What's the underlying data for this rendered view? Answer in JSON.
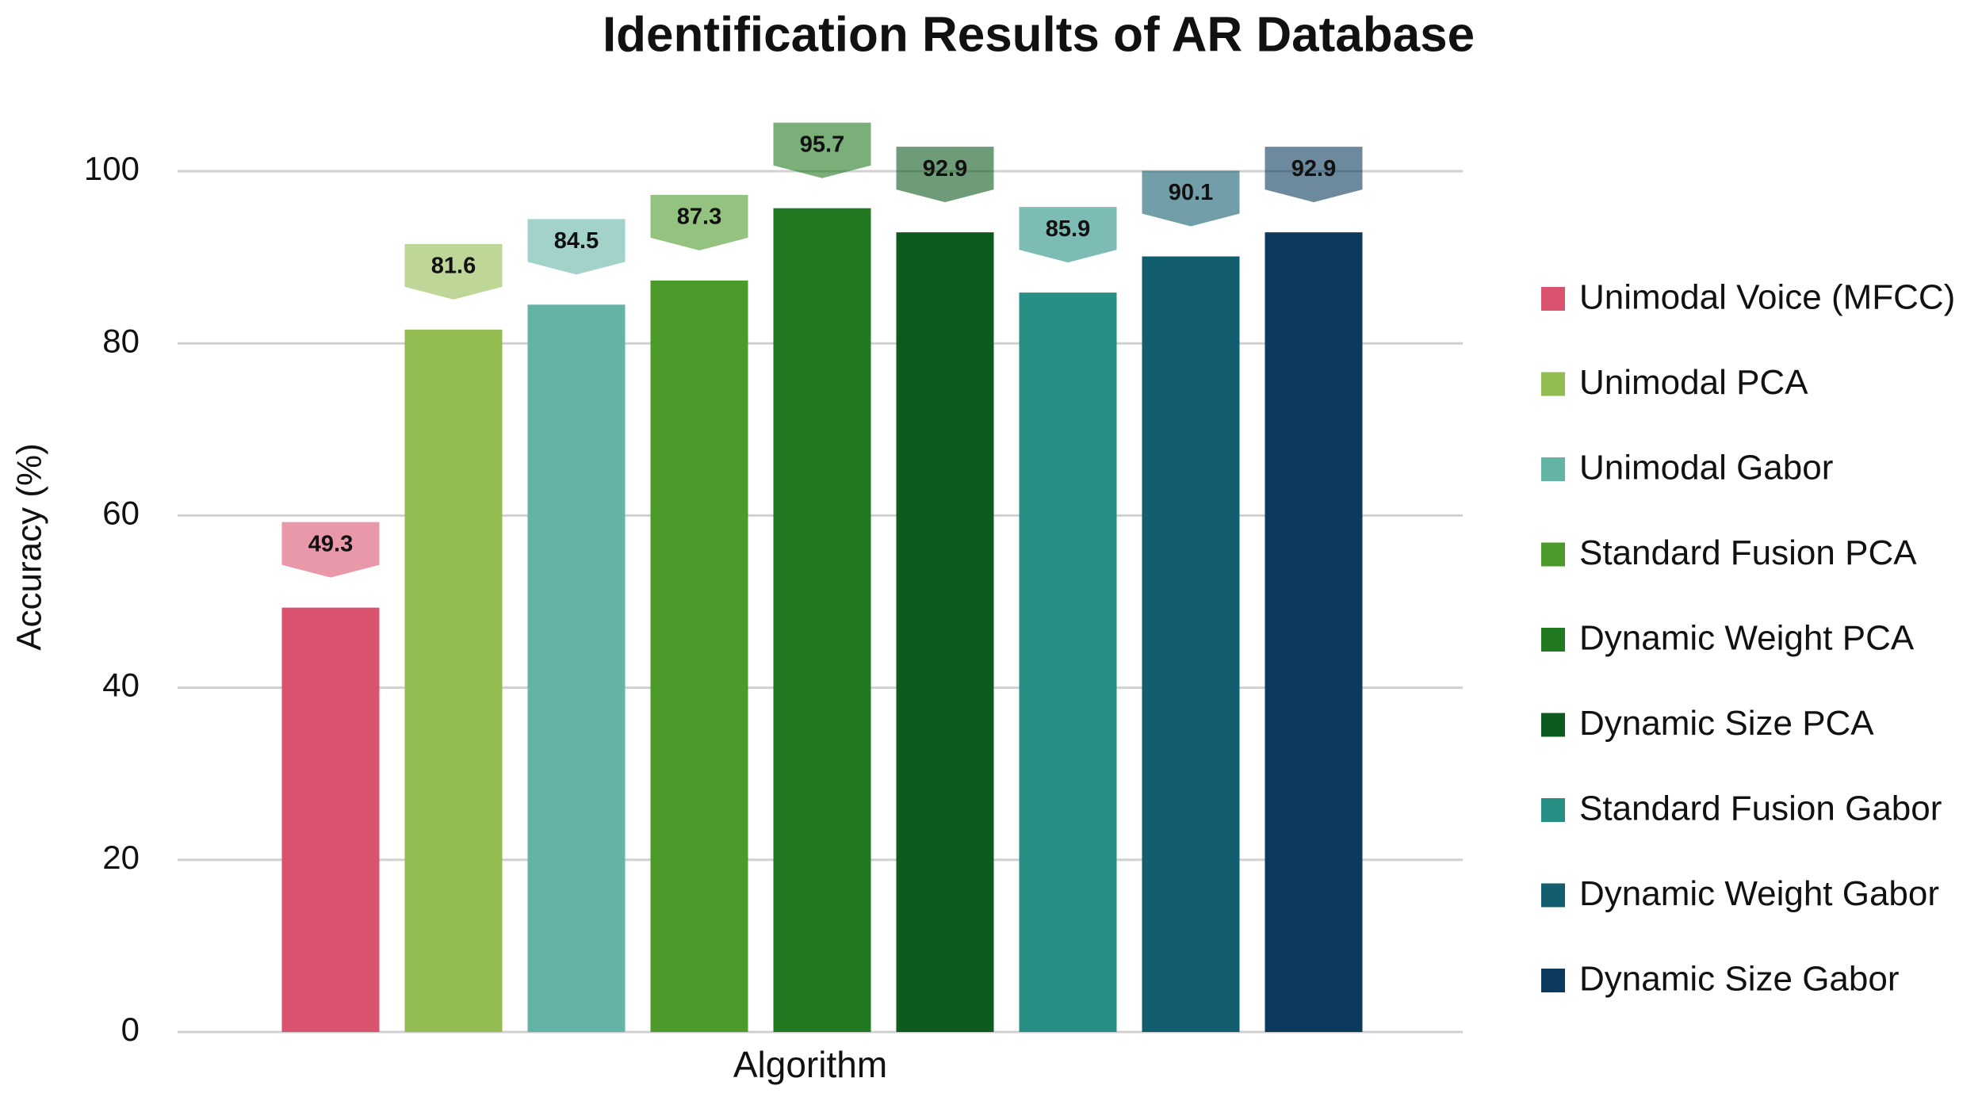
{
  "chart_data": {
    "type": "bar",
    "title": "Identification Results of AR Database",
    "x_label": "Algorithm",
    "y_label": "Accuracy (%)",
    "series": [
      {
        "name": "Unimodal Voice (MFCC)",
        "color": "#d9536f",
        "values": [
          49.3
        ]
      },
      {
        "name": "Unimodal PCA",
        "color": "#92bb52",
        "values": [
          81.6
        ]
      },
      {
        "name": "Unimodal Gabor",
        "color": "#64b4a6",
        "values": [
          84.5
        ]
      },
      {
        "name": "Standard Fusion PCA",
        "color": "#4c9a2a",
        "values": [
          87.3
        ]
      },
      {
        "name": "Dynamic Weight PCA",
        "color": "#217a21",
        "values": [
          95.7
        ]
      },
      {
        "name": "Dynamic Size PCA",
        "color": "#0f5a1e",
        "values": [
          92.9
        ]
      },
      {
        "name": "Standard Fusion Gabor",
        "color": "#278f84",
        "values": [
          85.9
        ]
      },
      {
        "name": "Dynamic Weight Gabor",
        "color": "#135e6e",
        "values": [
          90.1
        ]
      },
      {
        "name": "Dynamic Size Gabor",
        "color": "#0c3a5c",
        "values": [
          92.9
        ]
      }
    ],
    "ylim": [
      0,
      100
    ],
    "yticks": [
      0,
      20,
      40,
      60,
      80,
      100
    ],
    "grid": true,
    "legend": "right"
  }
}
